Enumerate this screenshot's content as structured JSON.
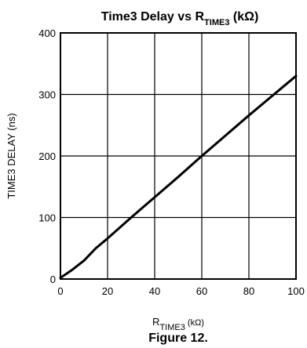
{
  "chart_data": {
    "type": "line",
    "title": {
      "main": "Time3 Delay vs R",
      "subscript": "TIME3",
      "suffix": " (kΩ)"
    },
    "xlabel": {
      "main": "R",
      "subscript": "TIME3",
      "suffix": " (kΩ)"
    },
    "ylabel": "TIME3 DELAY (ns)",
    "xlim": [
      0,
      100
    ],
    "ylim": [
      0,
      400
    ],
    "x_ticks": [
      0,
      20,
      40,
      60,
      80,
      100
    ],
    "y_ticks": [
      0,
      100,
      200,
      300,
      400
    ],
    "grid": true,
    "series": [
      {
        "x": [
          0,
          5,
          10,
          15,
          20,
          30,
          40,
          50,
          60,
          70,
          80,
          90,
          100
        ],
        "y": [
          2,
          15,
          30,
          50,
          66,
          100,
          133,
          166,
          200,
          233,
          266,
          298,
          330
        ]
      }
    ]
  },
  "caption": "Figure 12."
}
